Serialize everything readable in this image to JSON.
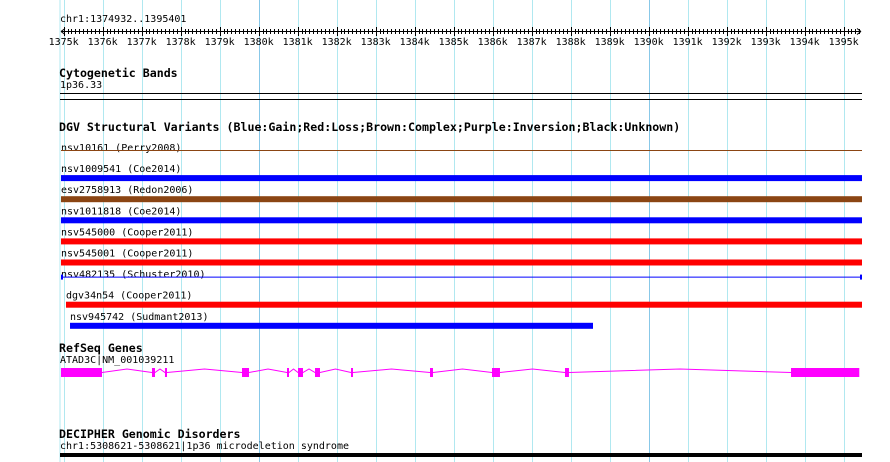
{
  "view": {
    "location": "chr1:1374932..1395401",
    "start": 1374932,
    "end": 1395401
  },
  "ruler": {
    "ticks_kb": [
      1375,
      1376,
      1377,
      1378,
      1379,
      1380,
      1381,
      1382,
      1383,
      1384,
      1385,
      1386,
      1387,
      1388,
      1389,
      1390,
      1391,
      1392,
      1393,
      1394,
      1395
    ],
    "tick_suffix": "k"
  },
  "tracks": {
    "cytoband": {
      "title": "Cytogenetic Bands",
      "label": "1p36.33"
    },
    "dgv": {
      "title": "DGV Structural Variants (Blue:Gain;Red:Loss;Brown:Complex;Purple:Inversion;Black:Unknown)",
      "colors": {
        "gain": "#0000ff",
        "loss": "#ff0000",
        "complex": "#8b4513"
      },
      "items": [
        {
          "label": "nsv10161 (Perry2008)",
          "type": "complex",
          "style": "line",
          "start": 1374932,
          "end": 1395401
        },
        {
          "label": "nsv1009541 (Coe2014)",
          "type": "gain",
          "style": "bar",
          "start": 1374932,
          "end": 1395401
        },
        {
          "label": "esv2758913 (Redon2006)",
          "type": "complex",
          "style": "bar",
          "start": 1374932,
          "end": 1395401
        },
        {
          "label": "nsv1011818 (Coe2014)",
          "type": "gain",
          "style": "bar",
          "start": 1374932,
          "end": 1395401
        },
        {
          "label": "nsv545000 (Cooper2011)",
          "type": "loss",
          "style": "bar",
          "start": 1374932,
          "end": 1395401
        },
        {
          "label": "nsv545001 (Cooper2011)",
          "type": "loss",
          "style": "bar",
          "start": 1374932,
          "end": 1395401
        },
        {
          "label": "nsv482135 (Schuster2010)",
          "type": "gain",
          "style": "line",
          "start": 1374932,
          "end": 1395401
        },
        {
          "label": "dgv34n54 (Cooper2011)",
          "type": "loss",
          "style": "bar",
          "start": 1375060,
          "end": 1395401
        },
        {
          "label": "nsv945742 (Sudmant2013)",
          "type": "gain",
          "style": "bar",
          "start": 1375163,
          "end": 1388573
        }
      ]
    },
    "refseq": {
      "title": "RefSeq Genes",
      "label": "ATAD3C|NM_001039211",
      "color": "#ff00ff",
      "exons": [
        [
          1374932,
          1375983
        ],
        [
          1377265,
          1377342
        ],
        [
          1377598,
          1377650
        ],
        [
          1379573,
          1379753
        ],
        [
          1380727,
          1380778
        ],
        [
          1381009,
          1381137
        ],
        [
          1381445,
          1381573
        ],
        [
          1382368,
          1382419
        ],
        [
          1384394,
          1384470
        ],
        [
          1385983,
          1386188
        ],
        [
          1387855,
          1387957
        ],
        [
          1393650,
          1395401
        ]
      ]
    },
    "decipher": {
      "title": "DECIPHER Genomic Disorders",
      "label": "chr1:5308621-5308621|1p36 microdeletion syndrome",
      "color": "#000000"
    }
  }
}
